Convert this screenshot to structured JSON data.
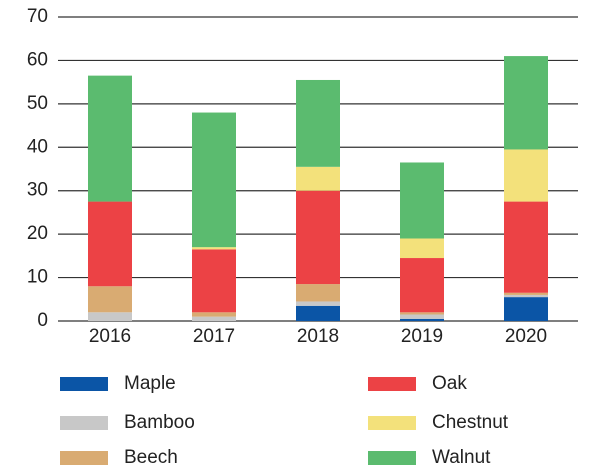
{
  "chart_data": {
    "type": "stacked_bar",
    "categories": [
      "2016",
      "2017",
      "2018",
      "2019",
      "2020"
    ],
    "series": [
      {
        "name": "Maple",
        "color": "#0b55a6",
        "values": [
          0,
          0,
          3.5,
          0.5,
          5.5
        ]
      },
      {
        "name": "Bamboo",
        "color": "#c8c8c8",
        "values": [
          2,
          1,
          1,
          1,
          0.5
        ]
      },
      {
        "name": "Beech",
        "color": "#d9ab72",
        "values": [
          6,
          1,
          4,
          0.5,
          0.5
        ]
      },
      {
        "name": "Oak",
        "color": "#ec4245",
        "values": [
          19.5,
          14.5,
          21.5,
          12.5,
          21
        ]
      },
      {
        "name": "Chestnut",
        "color": "#f3e17b",
        "values": [
          0,
          0.5,
          5.5,
          4.5,
          12
        ]
      },
      {
        "name": "Walnut",
        "color": "#5bbb6f",
        "values": [
          29,
          31,
          20,
          17.5,
          21.5
        ]
      }
    ],
    "ylim": [
      0,
      70
    ],
    "yticks": [
      0,
      10,
      20,
      30,
      40,
      50,
      60,
      70
    ],
    "grid": true
  }
}
